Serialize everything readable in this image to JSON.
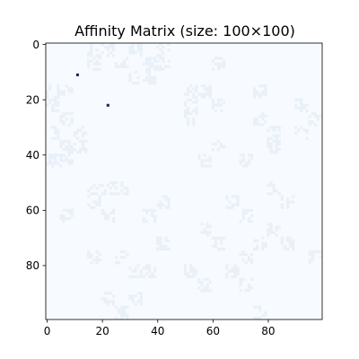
{
  "chart_data": {
    "type": "heatmap",
    "title": "Affinity Matrix (size: 100×100)",
    "xlabel": "",
    "ylabel": "",
    "size": [
      100,
      100
    ],
    "x_ticks": [
      0,
      20,
      40,
      60,
      80
    ],
    "y_ticks": [
      0,
      20,
      40,
      60,
      80
    ],
    "x_range": [
      -0.5,
      99.5
    ],
    "y_range": [
      -0.5,
      99.5
    ],
    "y_inverted": true,
    "colormap": "Blues",
    "colors": {
      "background": "#f7fbff",
      "faint": "#e9f0f8",
      "strong": "#08306b"
    },
    "base_value": 0,
    "faint_value": 0.06,
    "faint_density": 0.5,
    "block_size": 5,
    "off_diagonal_blocks": [
      [
        0,
        3
      ],
      [
        0,
        4
      ],
      [
        0,
        6
      ],
      [
        0,
        8
      ],
      [
        1,
        3
      ],
      [
        1,
        5
      ],
      [
        1,
        7
      ],
      [
        1,
        8
      ],
      [
        1,
        12
      ],
      [
        2,
        6
      ],
      [
        2,
        7
      ],
      [
        3,
        0
      ],
      [
        3,
        1
      ],
      [
        3,
        10
      ],
      [
        3,
        11
      ],
      [
        3,
        15
      ],
      [
        4,
        0
      ],
      [
        4,
        10
      ],
      [
        4,
        12
      ],
      [
        4,
        18
      ],
      [
        5,
        1
      ],
      [
        5,
        10
      ],
      [
        5,
        15
      ],
      [
        5,
        19
      ],
      [
        6,
        0
      ],
      [
        6,
        2
      ],
      [
        6,
        16
      ],
      [
        6,
        18
      ],
      [
        7,
        1
      ],
      [
        7,
        2
      ],
      [
        7,
        12
      ],
      [
        7,
        16
      ],
      [
        8,
        0
      ],
      [
        8,
        1
      ],
      [
        8,
        11
      ],
      [
        8,
        14
      ],
      [
        10,
        3
      ],
      [
        10,
        4
      ],
      [
        10,
        5
      ],
      [
        10,
        16
      ],
      [
        11,
        3
      ],
      [
        11,
        8
      ],
      [
        11,
        13
      ],
      [
        11,
        17
      ],
      [
        12,
        1
      ],
      [
        12,
        4
      ],
      [
        12,
        7
      ],
      [
        12,
        14
      ],
      [
        13,
        11
      ],
      [
        13,
        16
      ],
      [
        14,
        8
      ],
      [
        14,
        12
      ],
      [
        14,
        15
      ],
      [
        14,
        17
      ],
      [
        15,
        3
      ],
      [
        15,
        5
      ],
      [
        15,
        14
      ],
      [
        15,
        19
      ],
      [
        16,
        6
      ],
      [
        16,
        7
      ],
      [
        16,
        10
      ],
      [
        16,
        13
      ],
      [
        17,
        11
      ],
      [
        17,
        14
      ],
      [
        18,
        4
      ],
      [
        18,
        6
      ],
      [
        19,
        5
      ],
      [
        19,
        15
      ]
    ],
    "strong_points": [
      {
        "row": 11,
        "col": 11,
        "value": 1.0
      },
      {
        "row": 22,
        "col": 22,
        "value": 1.0
      }
    ]
  }
}
